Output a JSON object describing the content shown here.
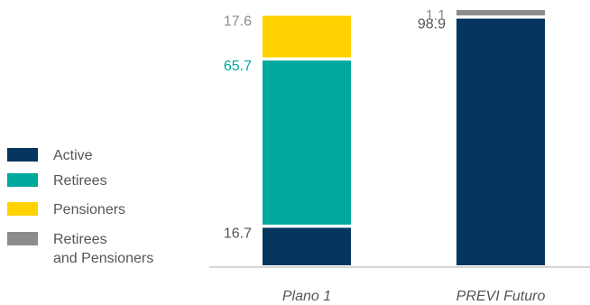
{
  "chart_data": {
    "type": "bar",
    "stacked": true,
    "unit": "%",
    "categories": [
      "Plano 1",
      "PREVI Futuro"
    ],
    "series": [
      {
        "name": "Active",
        "color": "#05365f",
        "values": [
          16.7,
          98.9
        ],
        "label_color": "#555555"
      },
      {
        "name": "Retirees",
        "color": "#00a99d",
        "values": [
          65.7,
          0
        ],
        "label_color": "#00a99d"
      },
      {
        "name": "Pensioners",
        "color": "#ffd200",
        "values": [
          17.6,
          0
        ],
        "label_color": "#8c8c8c"
      },
      {
        "name": "Retirees\nand Pensioners",
        "color": "#8c8c8c",
        "values": [
          0,
          1.1
        ],
        "label_color": "#8c8c8c"
      }
    ],
    "data_labels": [
      {
        "category": "Plano 1",
        "series": "Active",
        "text": "16.7"
      },
      {
        "category": "Plano 1",
        "series": "Retirees",
        "text": "65.7"
      },
      {
        "category": "Plano 1",
        "series": "Pensioners",
        "text": "17.6"
      },
      {
        "category": "PREVI Futuro",
        "series": "Active",
        "text": "98.9"
      },
      {
        "category": "PREVI Futuro",
        "series": "Retirees\nand Pensioners",
        "text": "1.1"
      }
    ],
    "legend": {
      "position": "left",
      "items": [
        {
          "label_lines": [
            "Active"
          ],
          "color": "#05365f"
        },
        {
          "label_lines": [
            "Retirees"
          ],
          "color": "#00a99d"
        },
        {
          "label_lines": [
            "Pensioners"
          ],
          "color": "#ffd200"
        },
        {
          "label_lines": [
            "Retirees",
            "and Pensioners"
          ],
          "color": "#8c8c8c"
        }
      ]
    },
    "ylim": [
      0,
      100
    ],
    "grid": false,
    "title": "",
    "xlabel": "",
    "ylabel": ""
  }
}
